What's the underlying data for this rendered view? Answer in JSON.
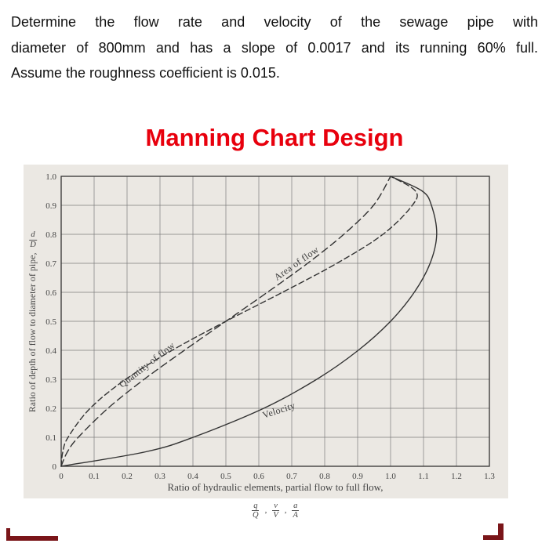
{
  "question": {
    "lines": [
      "Determine the flow rate and velocity of the sewage pipe with",
      "diameter of 800mm and has a slope of 0.0017 and its running 60% full.",
      "Assume the roughness coefficient is 0.015."
    ]
  },
  "title": "Manning Chart Design",
  "colors": {
    "title": "#e8000d",
    "chart_bg": "#ebe8e3",
    "curve": "#333333",
    "grid": "#7d7d7d",
    "axis_text": "#454545",
    "corner_mark": "#7a1519"
  },
  "chart_data": {
    "type": "line",
    "title": "",
    "xlabel": "Ratio of hydraulic elements, partial flow to full flow,",
    "xlabel_fractions": [
      {
        "num": "q",
        "den": "Q"
      },
      {
        "num": "v",
        "den": "V"
      },
      {
        "num": "a",
        "den": "A"
      }
    ],
    "ylabel": "Ratio of depth of flow to diameter of pipe,",
    "ylabel_fraction": {
      "num": "d",
      "den": "D"
    },
    "xlim": [
      0,
      1.3
    ],
    "ylim": [
      0,
      1.0
    ],
    "xticks": [
      0,
      0.1,
      0.2,
      0.3,
      0.4,
      0.5,
      0.6,
      0.7,
      0.8,
      0.9,
      1.0,
      1.1,
      1.2,
      1.3
    ],
    "yticks": [
      0,
      0.1,
      0.2,
      0.3,
      0.4,
      0.5,
      0.6,
      0.7,
      0.8,
      0.9,
      1.0
    ],
    "grid": true,
    "legend_position": "labels-on-curves",
    "series": [
      {
        "name": "Quantity of flow",
        "line_style": "dashed",
        "dash": "7 4",
        "label": {
          "x": 0.185,
          "y": 0.27,
          "rotation": -38
        },
        "points": [
          [
            0,
            0
          ],
          [
            0.005,
            0.05
          ],
          [
            0.021,
            0.1
          ],
          [
            0.088,
            0.2
          ],
          [
            0.196,
            0.3
          ],
          [
            0.337,
            0.4
          ],
          [
            0.5,
            0.5
          ],
          [
            0.672,
            0.6
          ],
          [
            0.837,
            0.7
          ],
          [
            0.977,
            0.8
          ],
          [
            1.066,
            0.9
          ],
          [
            1.075,
            0.95
          ],
          [
            1.0,
            1.0
          ]
        ]
      },
      {
        "name": "Area of flow",
        "line_style": "dashed",
        "dash": "9 5",
        "label": {
          "x": 0.655,
          "y": 0.64,
          "rotation": -35
        },
        "points": [
          [
            0,
            0
          ],
          [
            0.019,
            0.05
          ],
          [
            0.052,
            0.1
          ],
          [
            0.142,
            0.2
          ],
          [
            0.252,
            0.3
          ],
          [
            0.374,
            0.4
          ],
          [
            0.5,
            0.5
          ],
          [
            0.626,
            0.6
          ],
          [
            0.748,
            0.7
          ],
          [
            0.858,
            0.8
          ],
          [
            0.948,
            0.9
          ],
          [
            1.0,
            1.0
          ]
        ]
      },
      {
        "name": "Velocity",
        "line_style": "solid",
        "dash": "",
        "label": {
          "x": 0.615,
          "y": 0.165,
          "rotation": -18
        },
        "points": [
          [
            0,
            0
          ],
          [
            0.257,
            0.05
          ],
          [
            0.401,
            0.1
          ],
          [
            0.615,
            0.2
          ],
          [
            0.776,
            0.3
          ],
          [
            0.902,
            0.4
          ],
          [
            1.0,
            0.5
          ],
          [
            1.072,
            0.6
          ],
          [
            1.12,
            0.7
          ],
          [
            1.14,
            0.8
          ],
          [
            1.124,
            0.9
          ],
          [
            1.095,
            0.95
          ],
          [
            1.0,
            1.0
          ]
        ]
      }
    ]
  }
}
